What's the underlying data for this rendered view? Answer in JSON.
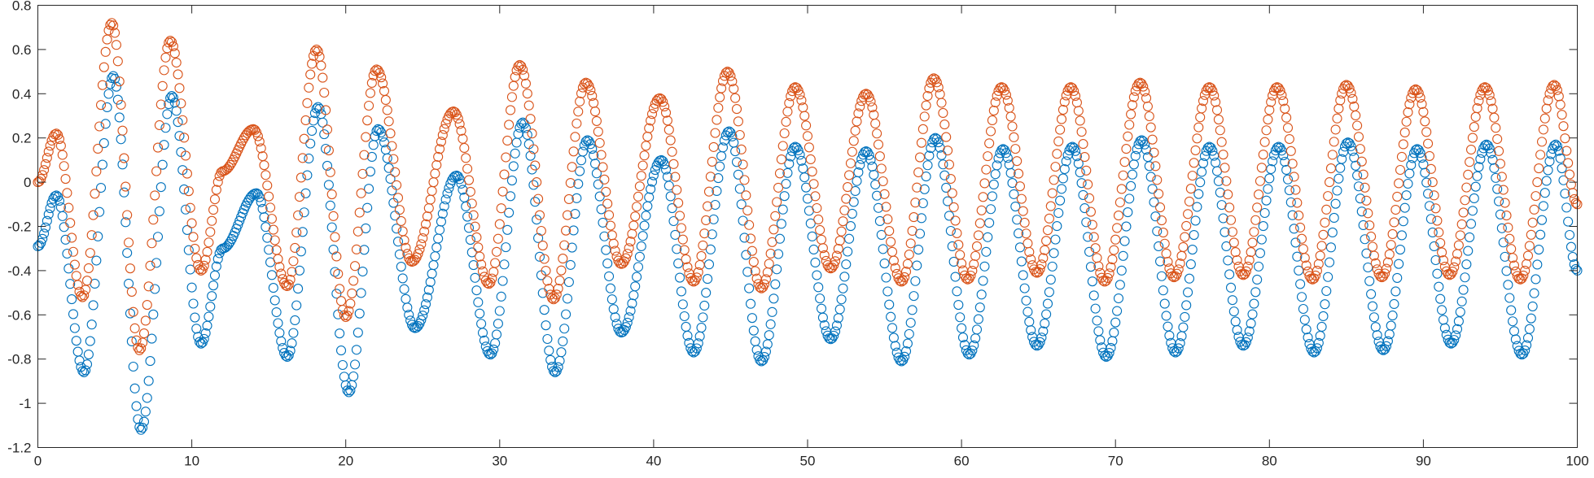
{
  "chart_data": {
    "type": "scatter",
    "title": "",
    "xlabel": "",
    "ylabel": "",
    "xlim": [
      0,
      100
    ],
    "ylim": [
      -1.2,
      0.8
    ],
    "xticks": [
      "0",
      "10",
      "20",
      "30",
      "40",
      "50",
      "60",
      "70",
      "80",
      "90",
      "100"
    ],
    "yticks": [
      "0.8",
      "0.6",
      "0.4",
      "0.2",
      "0",
      "-0.2",
      "-0.4",
      "-0.6",
      "-0.8",
      "-1",
      "-1.2"
    ],
    "grid": false,
    "marker": "circle-open",
    "series": [
      {
        "color": "#0072BD",
        "points": [
          [
            0,
            -0.29
          ],
          [
            1.2,
            -0.06
          ],
          [
            3.0,
            -0.86
          ],
          [
            4.9,
            0.48
          ],
          [
            6.7,
            -1.12
          ],
          [
            8.7,
            0.39
          ],
          [
            10.6,
            -0.73
          ],
          [
            12.0,
            -0.3
          ],
          [
            14.2,
            -0.05
          ],
          [
            16.2,
            -0.79
          ],
          [
            18.2,
            0.34
          ],
          [
            20.2,
            -0.95
          ],
          [
            22.1,
            0.24
          ],
          [
            24.5,
            -0.66
          ],
          [
            27.2,
            0.03
          ],
          [
            29.4,
            -0.78
          ],
          [
            31.5,
            0.27
          ],
          [
            33.6,
            -0.86
          ],
          [
            35.7,
            0.19
          ],
          [
            37.9,
            -0.68
          ],
          [
            40.5,
            0.1
          ],
          [
            42.6,
            -0.77
          ],
          [
            44.9,
            0.23
          ],
          [
            47.0,
            -0.81
          ],
          [
            49.2,
            0.16
          ],
          [
            51.5,
            -0.71
          ],
          [
            53.8,
            0.14
          ],
          [
            56.1,
            -0.81
          ],
          [
            58.3,
            0.2
          ],
          [
            60.5,
            -0.78
          ],
          [
            62.7,
            0.15
          ],
          [
            64.9,
            -0.74
          ],
          [
            67.2,
            0.16
          ],
          [
            69.4,
            -0.79
          ],
          [
            71.7,
            0.19
          ],
          [
            73.9,
            -0.77
          ],
          [
            76.1,
            0.16
          ],
          [
            78.3,
            -0.74
          ],
          [
            80.6,
            0.16
          ],
          [
            82.9,
            -0.77
          ],
          [
            85.1,
            0.18
          ],
          [
            87.4,
            -0.76
          ],
          [
            89.6,
            0.15
          ],
          [
            91.8,
            -0.73
          ],
          [
            94.1,
            0.17
          ],
          [
            96.4,
            -0.78
          ],
          [
            98.6,
            0.17
          ],
          [
            100,
            -0.4
          ]
        ]
      },
      {
        "color": "#D95319",
        "points": [
          [
            0,
            0.0
          ],
          [
            1.2,
            0.22
          ],
          [
            2.9,
            -0.52
          ],
          [
            4.8,
            0.72
          ],
          [
            6.6,
            -0.76
          ],
          [
            8.6,
            0.64
          ],
          [
            10.6,
            -0.4
          ],
          [
            12.0,
            0.05
          ],
          [
            14.0,
            0.24
          ],
          [
            16.2,
            -0.47
          ],
          [
            18.1,
            0.6
          ],
          [
            20.0,
            -0.61
          ],
          [
            22.0,
            0.51
          ],
          [
            24.3,
            -0.36
          ],
          [
            27.0,
            0.32
          ],
          [
            29.3,
            -0.46
          ],
          [
            31.3,
            0.53
          ],
          [
            33.5,
            -0.53
          ],
          [
            35.6,
            0.45
          ],
          [
            37.9,
            -0.37
          ],
          [
            40.4,
            0.38
          ],
          [
            42.6,
            -0.45
          ],
          [
            44.8,
            0.5
          ],
          [
            47.0,
            -0.48
          ],
          [
            49.2,
            0.43
          ],
          [
            51.5,
            -0.39
          ],
          [
            53.8,
            0.4
          ],
          [
            56.1,
            -0.45
          ],
          [
            58.2,
            0.47
          ],
          [
            60.4,
            -0.44
          ],
          [
            62.6,
            0.43
          ],
          [
            64.9,
            -0.41
          ],
          [
            67.1,
            0.43
          ],
          [
            69.3,
            -0.45
          ],
          [
            71.6,
            0.45
          ],
          [
            73.8,
            -0.43
          ],
          [
            76.1,
            0.43
          ],
          [
            78.3,
            -0.42
          ],
          [
            80.5,
            0.43
          ],
          [
            82.8,
            -0.44
          ],
          [
            85.0,
            0.44
          ],
          [
            87.3,
            -0.43
          ],
          [
            89.5,
            0.42
          ],
          [
            91.7,
            -0.42
          ],
          [
            94.0,
            0.43
          ],
          [
            96.3,
            -0.44
          ],
          [
            98.5,
            0.44
          ],
          [
            100,
            -0.1
          ]
        ]
      }
    ]
  }
}
